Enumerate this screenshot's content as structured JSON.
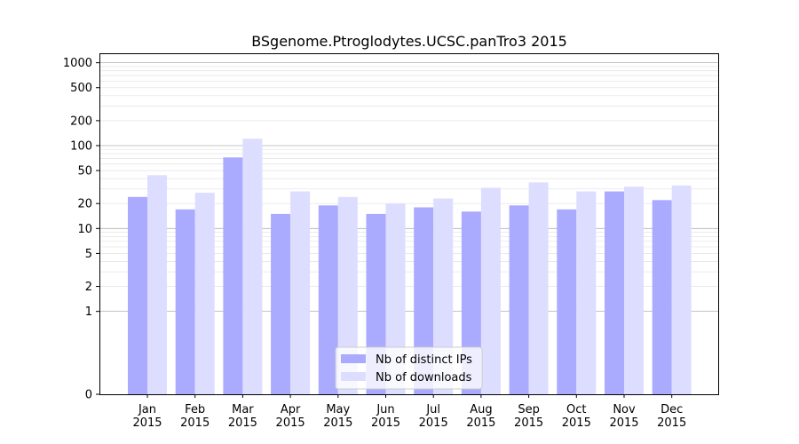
{
  "chart_data": {
    "type": "bar",
    "title": "BSgenome.Ptroglodytes.UCSC.panTro3 2015",
    "xlabel": "",
    "ylabel": "",
    "yscale": "symlog",
    "ylim": [
      0,
      1300
    ],
    "yticks": [
      0,
      1,
      2,
      5,
      10,
      20,
      50,
      100,
      200,
      500,
      1000
    ],
    "ytick_labels": [
      "0",
      "1",
      "2",
      "5",
      "10",
      "20",
      "50",
      "100",
      "200",
      "500",
      "1000"
    ],
    "categories": [
      "Jan 2015",
      "Feb 2015",
      "Mar 2015",
      "Apr 2015",
      "May 2015",
      "Jun 2015",
      "Jul 2015",
      "Aug 2015",
      "Sep 2015",
      "Oct 2015",
      "Nov 2015",
      "Dec 2015"
    ],
    "category_lines": [
      [
        "Jan",
        "2015"
      ],
      [
        "Feb",
        "2015"
      ],
      [
        "Mar",
        "2015"
      ],
      [
        "Apr",
        "2015"
      ],
      [
        "May",
        "2015"
      ],
      [
        "Jun",
        "2015"
      ],
      [
        "Jul",
        "2015"
      ],
      [
        "Aug",
        "2015"
      ],
      [
        "Sep",
        "2015"
      ],
      [
        "Oct",
        "2015"
      ],
      [
        "Nov",
        "2015"
      ],
      [
        "Dec",
        "2015"
      ]
    ],
    "series": [
      {
        "name": "Nb of distinct IPs",
        "color": "#aaaaff",
        "values": [
          24,
          17,
          72,
          15,
          19,
          15,
          18,
          16,
          19,
          17,
          28,
          22
        ]
      },
      {
        "name": "Nb of downloads",
        "color": "#ddddff",
        "values": [
          44,
          27,
          121,
          28,
          24,
          20,
          23,
          31,
          36,
          28,
          32,
          33
        ]
      }
    ],
    "grid": true,
    "legend_position": "bottom-center"
  }
}
